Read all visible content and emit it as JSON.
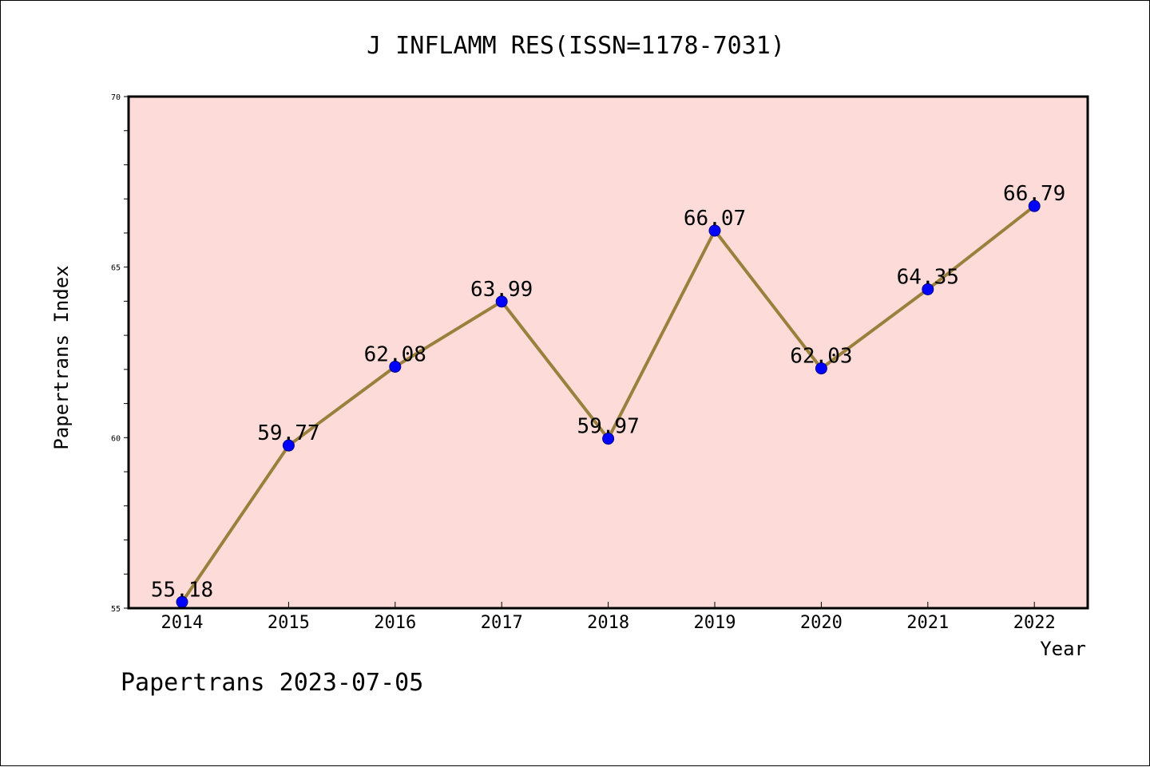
{
  "chart_data": {
    "type": "line",
    "title": "J INFLAMM RES(ISSN=1178-7031)",
    "xlabel": "Year",
    "ylabel": "Papertrans Index",
    "categories": [
      "2014",
      "2015",
      "2016",
      "2017",
      "2018",
      "2019",
      "2020",
      "2021",
      "2022"
    ],
    "series": [
      {
        "values": [
          55.18,
          59.77,
          62.08,
          63.99,
          59.97,
          66.07,
          62.03,
          64.35,
          66.79
        ],
        "data_labels": [
          "55.18",
          "59.77",
          "62.08",
          "63.99",
          "59.97",
          "66.07",
          "62.03",
          "64.35",
          "66.79"
        ]
      }
    ],
    "ylim": [
      55,
      70
    ],
    "yticks": [
      "55",
      "60",
      "65",
      "70"
    ],
    "y_minor_step": 1,
    "grid": false,
    "legend": "none",
    "colors": {
      "plot_background": "#fddbd8",
      "line": "#9a803c",
      "marker": "#0000ff",
      "axes": "#000000"
    },
    "footer": "Papertrans 2023-07-05"
  }
}
